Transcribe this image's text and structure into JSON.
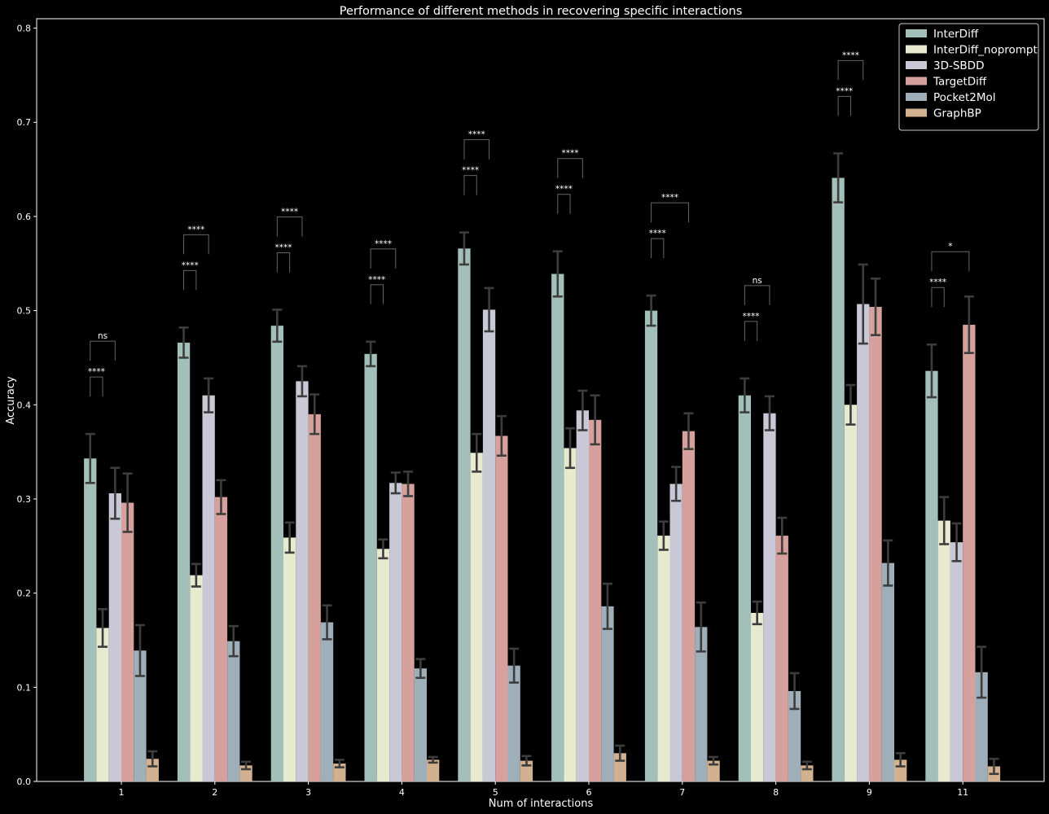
{
  "chart_data": {
    "type": "bar",
    "title": "Performance of different methods in recovering specific interactions",
    "xlabel": "Num of interactions",
    "ylabel": "Accuracy",
    "ylim": [
      0,
      0.81
    ],
    "yticks": [
      "0.0",
      "0.1",
      "0.2",
      "0.3",
      "0.4",
      "0.5",
      "0.6",
      "0.7",
      "0.8"
    ],
    "categories": [
      "1",
      "2",
      "3",
      "4",
      "5",
      "6",
      "7",
      "8",
      "9",
      "11"
    ],
    "grid": false,
    "legend_position": "top-right",
    "series": [
      {
        "name": "InterDiff",
        "color": "#a3bfb9",
        "values": [
          0.343,
          0.466,
          0.484,
          0.454,
          0.566,
          0.539,
          0.5,
          0.41,
          0.641,
          0.436
        ],
        "errors": [
          0.026,
          0.016,
          0.017,
          0.013,
          0.017,
          0.024,
          0.016,
          0.018,
          0.026,
          0.028
        ]
      },
      {
        "name": "InterDiff_noprompt",
        "color": "#e8ead0",
        "values": [
          0.163,
          0.219,
          0.259,
          0.247,
          0.349,
          0.354,
          0.261,
          0.179,
          0.4,
          0.277
        ],
        "errors": [
          0.02,
          0.012,
          0.016,
          0.01,
          0.02,
          0.021,
          0.015,
          0.012,
          0.021,
          0.025
        ]
      },
      {
        "name": "3D-SBDD",
        "color": "#c9c8d6",
        "values": [
          0.306,
          0.41,
          0.425,
          0.317,
          0.501,
          0.394,
          0.316,
          0.391,
          0.507,
          0.254
        ],
        "errors": [
          0.027,
          0.018,
          0.016,
          0.011,
          0.023,
          0.021,
          0.018,
          0.018,
          0.042,
          0.02
        ]
      },
      {
        "name": "TargetDiff",
        "color": "#d6a19c",
        "values": [
          0.296,
          0.302,
          0.39,
          0.316,
          0.367,
          0.384,
          0.372,
          0.261,
          0.504,
          0.485
        ],
        "errors": [
          0.031,
          0.018,
          0.021,
          0.013,
          0.021,
          0.026,
          0.019,
          0.019,
          0.03,
          0.03
        ]
      },
      {
        "name": "Pocket2Mol",
        "color": "#9eafba",
        "values": [
          0.139,
          0.149,
          0.169,
          0.12,
          0.123,
          0.186,
          0.164,
          0.096,
          0.232,
          0.116
        ],
        "errors": [
          0.027,
          0.016,
          0.018,
          0.01,
          0.018,
          0.024,
          0.026,
          0.019,
          0.024,
          0.027
        ]
      },
      {
        "name": "GraphBP",
        "color": "#d2b190",
        "values": [
          0.024,
          0.017,
          0.019,
          0.023,
          0.022,
          0.03,
          0.022,
          0.017,
          0.023,
          0.016
        ],
        "errors": [
          0.008,
          0.004,
          0.004,
          0.003,
          0.005,
          0.008,
          0.004,
          0.004,
          0.007,
          0.008
        ]
      }
    ],
    "significance": [
      {
        "category": "1",
        "pairs": [
          {
            "to_series": "InterDiff_noprompt",
            "label": "****"
          },
          {
            "to_series": "3D-SBDD",
            "label": "ns"
          }
        ]
      },
      {
        "category": "2",
        "pairs": [
          {
            "to_series": "InterDiff_noprompt",
            "label": "****"
          },
          {
            "to_series": "3D-SBDD",
            "label": "****"
          }
        ]
      },
      {
        "category": "3",
        "pairs": [
          {
            "to_series": "InterDiff_noprompt",
            "label": "****"
          },
          {
            "to_series": "3D-SBDD",
            "label": "****"
          }
        ]
      },
      {
        "category": "4",
        "pairs": [
          {
            "to_series": "InterDiff_noprompt",
            "label": "****"
          },
          {
            "to_series": "3D-SBDD",
            "label": "****"
          }
        ]
      },
      {
        "category": "5",
        "pairs": [
          {
            "to_series": "InterDiff_noprompt",
            "label": "****"
          },
          {
            "to_series": "3D-SBDD",
            "label": "****"
          }
        ]
      },
      {
        "category": "6",
        "pairs": [
          {
            "to_series": "InterDiff_noprompt",
            "label": "****"
          },
          {
            "to_series": "3D-SBDD",
            "label": "****"
          }
        ]
      },
      {
        "category": "7",
        "pairs": [
          {
            "to_series": "InterDiff_noprompt",
            "label": "****"
          },
          {
            "to_series": "TargetDiff",
            "label": "****"
          }
        ]
      },
      {
        "category": "8",
        "pairs": [
          {
            "to_series": "InterDiff_noprompt",
            "label": "****"
          },
          {
            "to_series": "3D-SBDD",
            "label": "ns"
          }
        ]
      },
      {
        "category": "9",
        "pairs": [
          {
            "to_series": "InterDiff_noprompt",
            "label": "****"
          },
          {
            "to_series": "3D-SBDD",
            "label": "****"
          }
        ]
      },
      {
        "category": "11",
        "pairs": [
          {
            "to_series": "InterDiff_noprompt",
            "label": "****"
          },
          {
            "to_series": "TargetDiff",
            "label": "*"
          }
        ]
      }
    ]
  }
}
